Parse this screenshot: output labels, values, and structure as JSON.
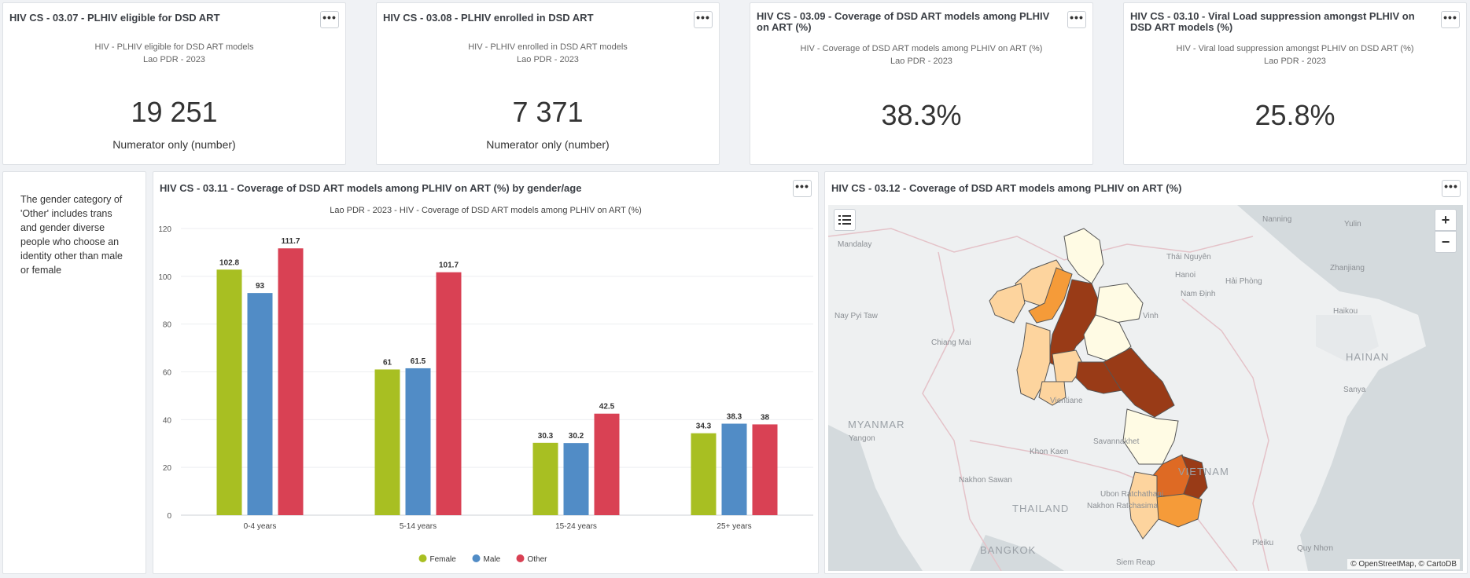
{
  "kpis": [
    {
      "title": "HIV CS - 03.07 - PLHIV eligible for DSD ART",
      "subtitle": "HIV - PLHIV eligible for DSD ART models",
      "location_year": "Lao PDR - 2023",
      "value": "19 251",
      "caption": "Numerator only (number)"
    },
    {
      "title": "HIV CS - 03.08 - PLHIV enrolled in DSD ART",
      "subtitle": "HIV - PLHIV enrolled in DSD ART models",
      "location_year": "Lao PDR - 2023",
      "value": "7 371",
      "caption": "Numerator only (number)"
    },
    {
      "title": "HIV CS - 03.09 - Coverage of DSD ART models among PLHIV on ART (%)",
      "subtitle": "HIV - Coverage of DSD ART models among PLHIV on ART (%)",
      "location_year": "Lao PDR - 2023",
      "value": "38.3%",
      "caption": ""
    },
    {
      "title": "HIV CS - 03.10 - Viral Load suppression amongst PLHIV on DSD ART models (%)",
      "subtitle": "HIV - Viral load suppression amongst PLHIV on DSD ART (%)",
      "location_year": "Lao PDR - 2023",
      "value": "25.8%",
      "caption": ""
    }
  ],
  "note": {
    "text": "The gender category of 'Other' includes trans and gender diverse people who choose an identity other than male or female"
  },
  "chart_panel": {
    "title": "HIV CS - 03.11 - Coverage of DSD ART models among PLHIV on ART (%) by gender/age",
    "subtitle": "Lao PDR - 2023 - HIV - Coverage of DSD ART models among PLHIV on ART (%)"
  },
  "chart_data": {
    "type": "bar",
    "title": "Lao PDR - 2023 - HIV - Coverage of DSD ART models among PLHIV on ART (%)",
    "categories": [
      "0-4 years",
      "5-14 years",
      "15-24 years",
      "25+ years"
    ],
    "series": [
      {
        "name": "Female",
        "color": "#a8bf22",
        "values": [
          102.8,
          61,
          30.3,
          34.3
        ]
      },
      {
        "name": "Male",
        "color": "#518cc6",
        "values": [
          93,
          61.5,
          30.2,
          38.3
        ]
      },
      {
        "name": "Other",
        "color": "#d94154",
        "values": [
          111.7,
          101.7,
          42.5,
          38
        ]
      }
    ],
    "ylim": [
      0,
      120
    ],
    "yticks": [
      0,
      20,
      40,
      60,
      80,
      100,
      120
    ],
    "grid": true,
    "legend": "bottom-center",
    "xlabel": "",
    "ylabel": ""
  },
  "map_panel": {
    "title": "HIV CS - 03.12 - Coverage of DSD ART models among PLHIV on ART (%)",
    "attribution": "© OpenStreetMap, © CartoDB",
    "zoom_in": "+",
    "zoom_out": "−",
    "legend_icon": "list-icon",
    "places": {
      "nanning": "Nanning",
      "yulin": "Yulin",
      "mandalay": "Mandalay",
      "thai_nguyen": "Thái Nguyên",
      "hanoi": "Hanoi",
      "zhanjiang": "Zhanjiang",
      "hai_phong": "Hải Phòng",
      "nam_dinh": "Nam Định",
      "nay_pyi_taw": "Nay Pyi Taw",
      "haikou": "Haikou",
      "vinh": "Vinh",
      "chiang_mai": "Chiang Mai",
      "hainan": "HAINAN",
      "sanya": "Sanya",
      "myanmar": "MYANMAR",
      "yangon": "Yangon",
      "khon_kaen": "Khon Kaen",
      "savannakhet": "Savannakhet",
      "vietnam": "VIETNAM",
      "nakhon_sawan": "Nakhon Sawan",
      "thailand": "THAILAND",
      "ubon": "Ubon Ratchathani",
      "nakhon_ratchasima": "Nakhon Ratchasima",
      "bangkok": "BANGKOK",
      "pleiku": "Pleiku",
      "quy_nhon": "Quy Nhơn",
      "siem_reap": "Siem Reap",
      "vientiane": "Vientiane"
    },
    "colors": {
      "low": "#fffbe4",
      "mid_low": "#fdd49e",
      "mid": "#f59b39",
      "mid_high": "#de6a24",
      "high": "#993b17"
    }
  },
  "menu_label": "•••"
}
